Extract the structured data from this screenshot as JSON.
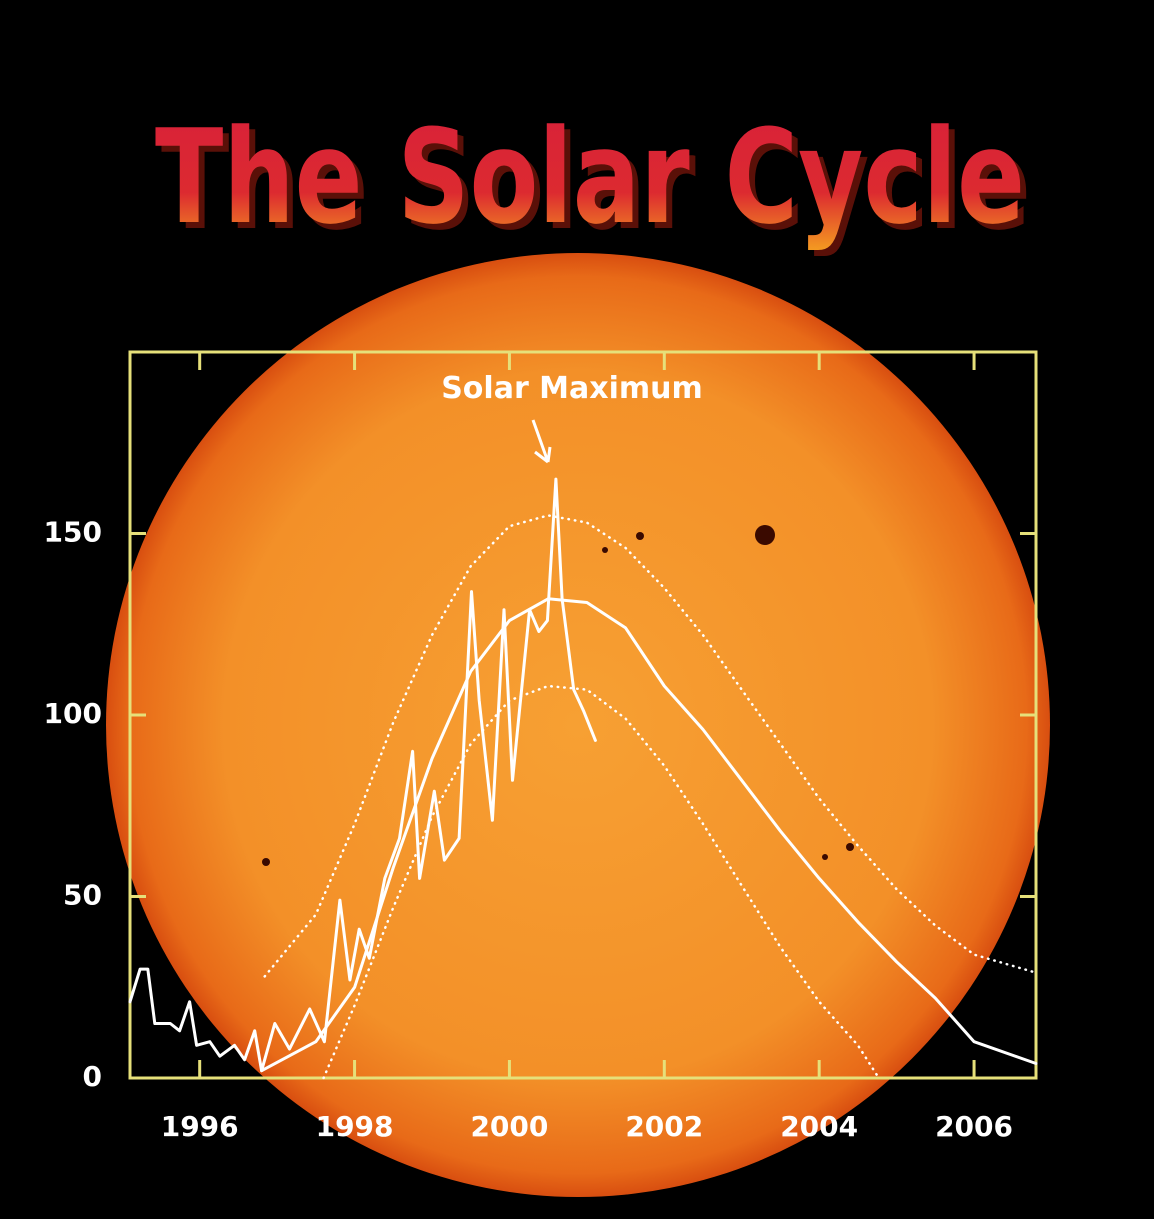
{
  "chart_data": {
    "type": "line",
    "title": "The Solar Cycle",
    "annotation": "Solar Maximum",
    "xlim": [
      1995.1,
      2006.8
    ],
    "xticks": [
      1996,
      1998,
      2000,
      2002,
      2004,
      2006
    ],
    "ylim": [
      0,
      200
    ],
    "yticks": [
      0,
      50,
      100,
      150
    ],
    "frame_color": "#e6e07a",
    "series": [
      {
        "color": "#ffffff",
        "style": "solid",
        "x": [
          1995.1,
          1995.23,
          1995.33,
          1995.42,
          1995.62,
          1995.74,
          1995.87,
          1995.96,
          1996.13,
          1996.26,
          1996.45,
          1996.58,
          1996.71,
          1996.8,
          1996.97,
          1997.16,
          1997.42,
          1997.61,
          1997.81,
          1997.94,
          1998.06,
          1998.19,
          1998.39,
          1998.58,
          1998.75,
          1998.84,
          1999.03,
          1999.16,
          1999.35,
          1999.51,
          1999.61,
          1999.78,
          1999.93,
          2000.04,
          2000.26,
          2000.38,
          2000.49,
          2000.6,
          2000.68,
          2000.83,
          2000.96,
          2001.11
        ],
        "values": [
          21,
          30,
          30,
          15,
          15,
          13,
          21,
          9,
          10,
          6,
          9,
          5,
          13,
          2,
          15,
          8,
          19,
          10,
          49,
          27,
          41,
          33,
          55,
          66,
          90,
          55,
          79,
          60,
          66,
          134,
          104,
          71,
          129,
          82,
          129,
          123,
          126,
          165,
          132,
          107,
          101,
          93
        ]
      },
      {
        "color": "#ffffff",
        "style": "solid",
        "x": [
          1996.8,
          1997.5,
          1998,
          1998.5,
          1999,
          1999.5,
          2000,
          2000.5,
          2001,
          2001.5,
          2002,
          2002.5,
          2003,
          2003.5,
          2004,
          2004.5,
          2005,
          2005.5,
          2006,
          2006.8
        ],
        "values": [
          2,
          10,
          25,
          58,
          88,
          112,
          126,
          132,
          131,
          124,
          108,
          96,
          82,
          68,
          55,
          43,
          32,
          22,
          10,
          4
        ]
      },
      {
        "color": "#ffffff",
        "style": "dotted",
        "x": [
          1996.84,
          1997.5,
          1998,
          1998.5,
          1999,
          1999.5,
          2000,
          2000.5,
          2001,
          2001.5,
          2002,
          2002.5,
          2003,
          2003.5,
          2004,
          2004.5,
          2005,
          2005.5,
          2006,
          2006.8
        ],
        "values": [
          28,
          45,
          70,
          98,
          122,
          141,
          152,
          155,
          153,
          146,
          135,
          122,
          107,
          92,
          77,
          64,
          52,
          42,
          34,
          29
        ]
      },
      {
        "color": "#ffffff",
        "style": "dotted",
        "x": [
          1997.6,
          1998,
          1998.5,
          1999,
          1999.5,
          2000,
          2000.5,
          2001,
          2001.5,
          2002,
          2002.5,
          2003,
          2003.5,
          2004,
          2004.5,
          2004.77
        ],
        "values": [
          0,
          20,
          47,
          72,
          92,
          104,
          108,
          107,
          99,
          86,
          70,
          53,
          36,
          21,
          9,
          0
        ]
      }
    ]
  }
}
